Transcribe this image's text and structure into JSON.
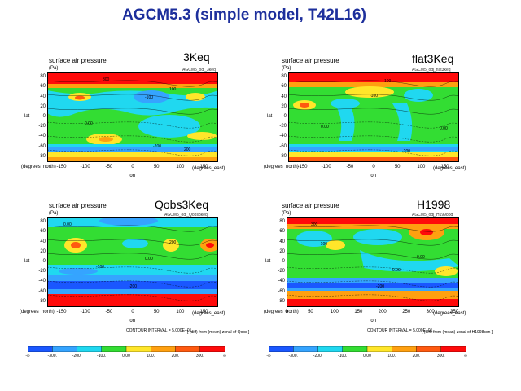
{
  "title": "AGCM5.3 (simple model, T42L16)",
  "colors": {
    "title": "#1d2f9c",
    "levels": [
      "#1a57ff",
      "#35a4ff",
      "#20d8f0",
      "#33dd33",
      "#ffe62a",
      "#ffa010",
      "#ff5a10",
      "#ff0a0a"
    ]
  },
  "chart_data": [
    {
      "type": "heatmap",
      "variable": "surface air pressure",
      "unit": "(Pa)",
      "title": "3Keq",
      "subtitle": "AGCM5_odj_3keq",
      "xlabel": "lon",
      "ylabel": "lat",
      "x_unit": "(degrees_east)",
      "y_unit": "(degrees_north)",
      "xlim": [
        -180,
        180
      ],
      "ylim": [
        -90,
        90
      ],
      "xticks": [
        "-150",
        "-100",
        "-50",
        "0",
        "50",
        "100",
        "150"
      ],
      "yticks": [
        "80",
        "60",
        "40",
        "20",
        "0",
        "-20",
        "-40",
        "-60",
        "-80"
      ],
      "contour_labels": [
        "300",
        "100",
        "-100",
        "0.00",
        "-200",
        "200"
      ]
    },
    {
      "type": "heatmap",
      "variable": "surface air pressure",
      "unit": "(Pa)",
      "title": "flat3Keq",
      "subtitle": "AGCM5_odj_flat3keq",
      "xlabel": "lon",
      "ylabel": "lat",
      "x_unit": "(degrees_east)",
      "y_unit": "(degrees_north)",
      "xlim": [
        -180,
        180
      ],
      "ylim": [
        -90,
        90
      ],
      "xticks": [
        "-150",
        "-100",
        "-50",
        "0",
        "50",
        "100",
        "150"
      ],
      "yticks": [
        "80",
        "60",
        "40",
        "20",
        "0",
        "-20",
        "-40",
        "-60",
        "-80"
      ],
      "contour_labels": [
        "100",
        "-100",
        "0.00",
        "-200",
        "0.00"
      ]
    },
    {
      "type": "heatmap",
      "variable": "surface air pressure",
      "unit": "(Pa)",
      "title": "Qobs3Keq",
      "subtitle": "AGCM5_odj_Qobs3keq",
      "xlabel": "lon",
      "ylabel": "lat",
      "x_unit": "(degrees_east)",
      "y_unit": "(degrees_north)",
      "xlim": [
        -180,
        180
      ],
      "ylim": [
        -90,
        90
      ],
      "xticks": [
        "-150",
        "-100",
        "-50",
        "0",
        "50",
        "100",
        "150"
      ],
      "yticks": [
        "80",
        "60",
        "40",
        "20",
        "0",
        "-20",
        "-40",
        "-60",
        "-80"
      ],
      "contour_labels": [
        "0.00",
        "200",
        "-100",
        "0.00",
        "-200"
      ],
      "footer_left": "CONTOUR INTERVAL = 5.000E+01",
      "footer_right": "[ (diff) from (mean) zonal of Qobs ]"
    },
    {
      "type": "heatmap",
      "variable": "surface air pressure",
      "unit": "(Pa)",
      "title": "H1998",
      "subtitle": "AGCM5_odj_H1998pd",
      "xlabel": "lon",
      "ylabel": "lat",
      "x_unit": "(degrees_east)",
      "y_unit": "(degrees_north)",
      "xlim": [
        0,
        360
      ],
      "ylim": [
        -90,
        90
      ],
      "xticks": [
        "0",
        "50",
        "100",
        "150",
        "200",
        "250",
        "300",
        "350"
      ],
      "yticks": [
        "80",
        "60",
        "40",
        "20",
        "0",
        "-20",
        "-40",
        "-60",
        "-80"
      ],
      "contour_labels": [
        "300",
        "0.00",
        "-100",
        "0.00",
        "-200"
      ],
      "footer_left": "CONTOUR INTERVAL = 5.000E+01",
      "footer_right": "[ (diff) from (mean) zonal of H1998con ]"
    }
  ],
  "legend": {
    "labels": [
      "-∞",
      "-300.",
      "-200.",
      "-100.",
      "0.00",
      "100.",
      "200.",
      "300.",
      "∞"
    ]
  }
}
